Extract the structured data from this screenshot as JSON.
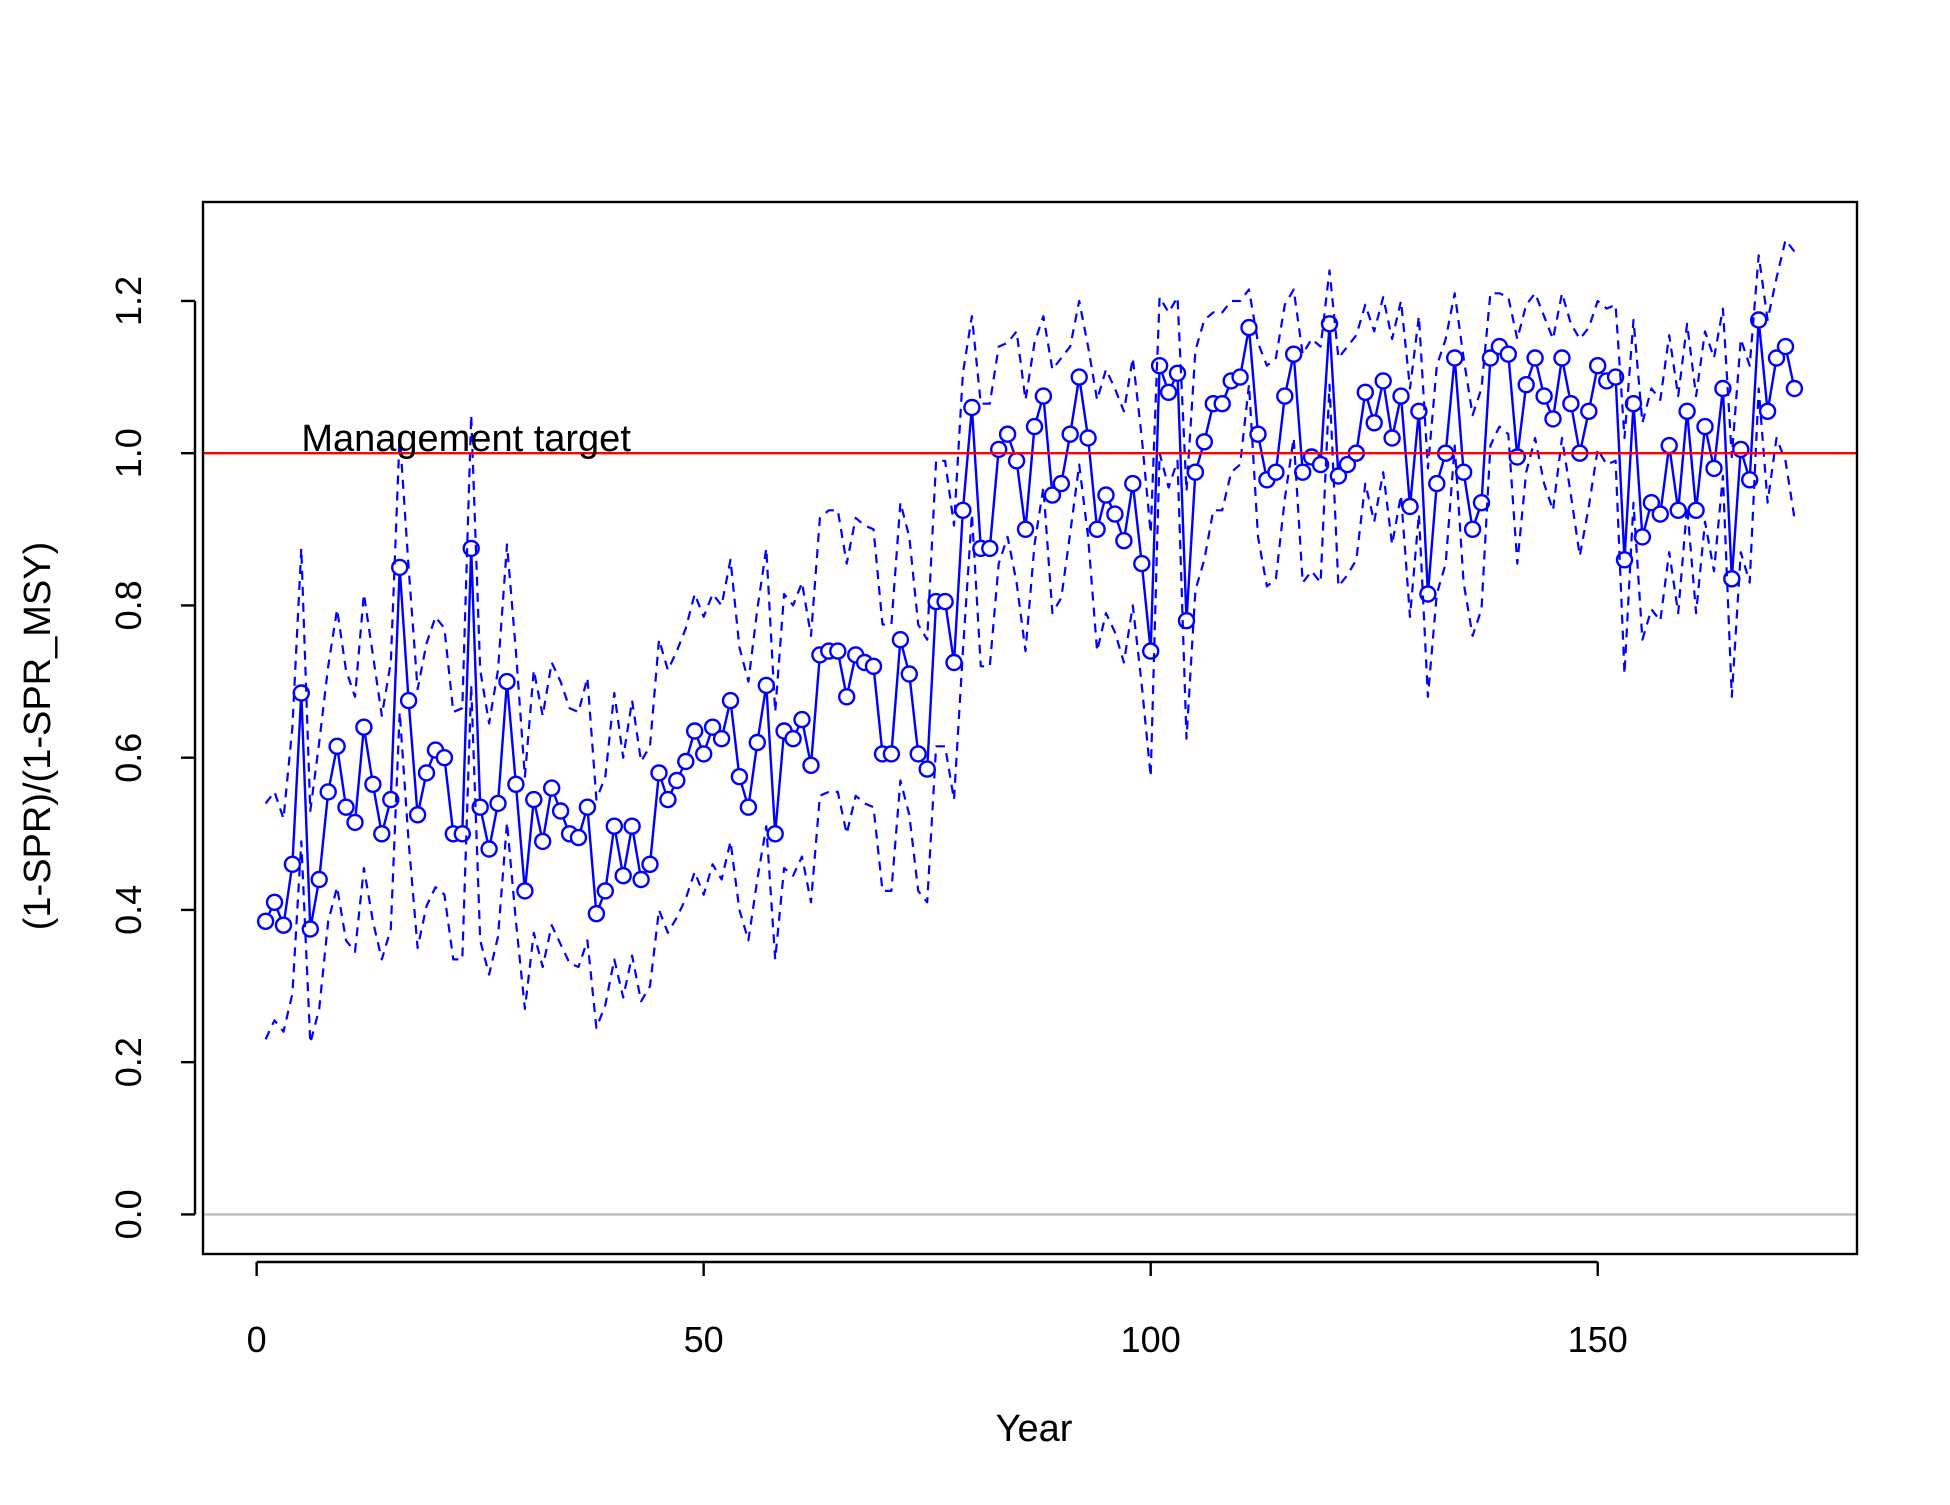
{
  "chart_data": {
    "type": "line",
    "title": "",
    "xlabel": "Year",
    "ylabel": "(1-SPR)/(1-SPR_MSY)",
    "xlim": [
      -6,
      179
    ],
    "ylim": [
      -0.052,
      1.33
    ],
    "x_ticks": [
      0,
      50,
      100,
      150
    ],
    "y_ticks": [
      0.0,
      0.2,
      0.4,
      0.6,
      0.8,
      1.0,
      1.2
    ],
    "x_tick_labels": [
      "0",
      "50",
      "100",
      "150"
    ],
    "y_tick_labels": [
      "0.0",
      "0.2",
      "0.4",
      "0.6",
      "0.8",
      "1.0",
      "1.2"
    ],
    "grid": false,
    "legend": "none",
    "colors": {
      "series": "#0000ff",
      "target_line": "#ff0000",
      "zero_line": "#bebebe",
      "axis": "#000000"
    },
    "reference_lines": [
      {
        "y": 1.0,
        "label": "Management target",
        "label_x": 5,
        "color": "#ff0000"
      },
      {
        "y": 0.0,
        "label": "",
        "color": "#bebebe"
      }
    ],
    "x": [
      1,
      2,
      3,
      4,
      5,
      6,
      7,
      8,
      9,
      10,
      11,
      12,
      13,
      14,
      15,
      16,
      17,
      18,
      19,
      20,
      21,
      22,
      23,
      24,
      25,
      26,
      27,
      28,
      29,
      30,
      31,
      32,
      33,
      34,
      35,
      36,
      37,
      38,
      39,
      40,
      41,
      42,
      43,
      44,
      45,
      46,
      47,
      48,
      49,
      50,
      51,
      52,
      53,
      54,
      55,
      56,
      57,
      58,
      59,
      60,
      61,
      62,
      63,
      64,
      65,
      66,
      67,
      68,
      69,
      70,
      71,
      72,
      73,
      74,
      75,
      76,
      77,
      78,
      79,
      80,
      81,
      82,
      83,
      84,
      85,
      86,
      87,
      88,
      89,
      90,
      91,
      92,
      93,
      94,
      95,
      96,
      97,
      98,
      99,
      100,
      101,
      102,
      103,
      104,
      105,
      106,
      107,
      108,
      109,
      110,
      111,
      112,
      113,
      114,
      115,
      116,
      117,
      118,
      119,
      120,
      121,
      122,
      123,
      124,
      125,
      126,
      127,
      128,
      129,
      130,
      131,
      132,
      133,
      134,
      135,
      136,
      137,
      138,
      139,
      140,
      141,
      142,
      143,
      144,
      145,
      146,
      147,
      148,
      149,
      150,
      151,
      152,
      153,
      154,
      155,
      156,
      157,
      158,
      159,
      160,
      161,
      162,
      163,
      164,
      165,
      166,
      167,
      168,
      169,
      170,
      171,
      172
    ],
    "series": [
      {
        "name": "",
        "style": "line-with-open-circles",
        "values": [
          0.385,
          0.41,
          0.38,
          0.46,
          0.685,
          0.375,
          0.44,
          0.555,
          0.615,
          0.535,
          0.515,
          0.64,
          0.565,
          0.5,
          0.545,
          0.85,
          0.675,
          0.525,
          0.58,
          0.61,
          0.6,
          0.5,
          0.5,
          0.875,
          0.535,
          0.48,
          0.54,
          0.7,
          0.565,
          0.425,
          0.545,
          0.49,
          0.56,
          0.53,
          0.5,
          0.495,
          0.535,
          0.395,
          0.425,
          0.51,
          0.445,
          0.51,
          0.44,
          0.46,
          0.58,
          0.545,
          0.57,
          0.595,
          0.635,
          0.605,
          0.64,
          0.625,
          0.675,
          0.575,
          0.535,
          0.62,
          0.695,
          0.5,
          0.635,
          0.625,
          0.65,
          0.59,
          0.735,
          0.74,
          0.74,
          0.68,
          0.735,
          0.725,
          0.72,
          0.605,
          0.605,
          0.755,
          0.71,
          0.605,
          0.585,
          0.805,
          0.805,
          0.725,
          0.925,
          1.06,
          0.875,
          0.875,
          1.005,
          1.025,
          0.99,
          0.9,
          1.035,
          1.075,
          0.945,
          0.96,
          1.025,
          1.1,
          1.02,
          0.9,
          0.945,
          0.92,
          0.885,
          0.96,
          0.855,
          0.74,
          1.115,
          1.08,
          1.105,
          0.78,
          0.975,
          1.015,
          1.065,
          1.065,
          1.095,
          1.1,
          1.165,
          1.025,
          0.965,
          0.975,
          1.075,
          1.13,
          0.975,
          0.995,
          0.985,
          1.17,
          0.97,
          0.985,
          1.0,
          1.08,
          1.04,
          1.095,
          1.02,
          1.075,
          0.93,
          1.055,
          0.815,
          0.96,
          1.0,
          1.125,
          0.975,
          0.9,
          0.935,
          1.125,
          1.14,
          1.13,
          0.995,
          1.09,
          1.125,
          1.075,
          1.045,
          1.125,
          1.065,
          1.0,
          1.055,
          1.115,
          1.095,
          1.1,
          0.86,
          1.065,
          0.89,
          0.935,
          0.92,
          1.01,
          0.925,
          1.055,
          0.925,
          1.035,
          0.98,
          1.085,
          0.835,
          1.005,
          0.965,
          1.175,
          1.055,
          1.125,
          1.14,
          1.085
        ]
      },
      {
        "name": "",
        "style": "dashed",
        "values": [
          0.54,
          0.555,
          0.52,
          0.64,
          0.875,
          0.53,
          0.62,
          0.72,
          0.795,
          0.715,
          0.68,
          0.815,
          0.735,
          0.655,
          0.725,
          1.025,
          0.85,
          0.69,
          0.75,
          0.785,
          0.77,
          0.66,
          0.665,
          1.05,
          0.715,
          0.645,
          0.715,
          0.88,
          0.74,
          0.575,
          0.715,
          0.655,
          0.725,
          0.7,
          0.665,
          0.66,
          0.705,
          0.545,
          0.575,
          0.685,
          0.6,
          0.675,
          0.595,
          0.615,
          0.755,
          0.715,
          0.74,
          0.77,
          0.815,
          0.785,
          0.815,
          0.8,
          0.86,
          0.745,
          0.7,
          0.795,
          0.875,
          0.66,
          0.815,
          0.8,
          0.83,
          0.76,
          0.915,
          0.925,
          0.925,
          0.855,
          0.915,
          0.905,
          0.9,
          0.775,
          0.775,
          0.935,
          0.89,
          0.775,
          0.755,
          0.99,
          0.99,
          0.905,
          1.105,
          1.18,
          1.065,
          1.065,
          1.14,
          1.145,
          1.16,
          1.07,
          1.145,
          1.18,
          1.11,
          1.125,
          1.14,
          1.2,
          1.14,
          1.07,
          1.11,
          1.085,
          1.055,
          1.125,
          1.02,
          0.895,
          1.205,
          1.185,
          1.205,
          0.95,
          1.135,
          1.175,
          1.185,
          1.185,
          1.2,
          1.2,
          1.215,
          1.145,
          1.115,
          1.125,
          1.195,
          1.215,
          1.13,
          1.15,
          1.14,
          1.24,
          1.125,
          1.14,
          1.155,
          1.195,
          1.16,
          1.205,
          1.15,
          1.2,
          1.085,
          1.18,
          0.98,
          1.115,
          1.15,
          1.21,
          1.125,
          1.05,
          1.085,
          1.21,
          1.21,
          1.205,
          1.15,
          1.195,
          1.21,
          1.18,
          1.15,
          1.21,
          1.17,
          1.15,
          1.165,
          1.2,
          1.19,
          1.195,
          1.02,
          1.175,
          1.04,
          1.085,
          1.07,
          1.155,
          1.075,
          1.17,
          1.075,
          1.16,
          1.125,
          1.19,
          0.995,
          1.15,
          1.115,
          1.26,
          1.175,
          1.23,
          1.28,
          1.265
        ]
      },
      {
        "name": "",
        "style": "dashed",
        "values": [
          0.23,
          0.255,
          0.24,
          0.29,
          0.49,
          0.225,
          0.27,
          0.385,
          0.43,
          0.36,
          0.345,
          0.455,
          0.385,
          0.335,
          0.375,
          0.66,
          0.49,
          0.35,
          0.405,
          0.43,
          0.42,
          0.335,
          0.335,
          0.695,
          0.36,
          0.315,
          0.365,
          0.515,
          0.385,
          0.27,
          0.37,
          0.325,
          0.38,
          0.355,
          0.33,
          0.325,
          0.36,
          0.245,
          0.275,
          0.335,
          0.285,
          0.34,
          0.28,
          0.3,
          0.4,
          0.37,
          0.39,
          0.415,
          0.45,
          0.42,
          0.46,
          0.44,
          0.49,
          0.4,
          0.36,
          0.44,
          0.51,
          0.335,
          0.455,
          0.445,
          0.47,
          0.41,
          0.55,
          0.555,
          0.555,
          0.5,
          0.55,
          0.54,
          0.535,
          0.425,
          0.425,
          0.57,
          0.525,
          0.425,
          0.41,
          0.615,
          0.615,
          0.545,
          0.74,
          0.92,
          0.72,
          0.72,
          0.855,
          0.89,
          0.83,
          0.74,
          0.88,
          0.955,
          0.79,
          0.81,
          0.895,
          0.985,
          0.89,
          0.74,
          0.79,
          0.765,
          0.725,
          0.8,
          0.695,
          0.575,
          1.0,
          0.955,
          0.99,
          0.625,
          0.82,
          0.86,
          0.925,
          0.925,
          0.975,
          0.985,
          1.09,
          0.89,
          0.825,
          0.835,
          0.94,
          1.02,
          0.83,
          0.845,
          0.83,
          1.09,
          0.825,
          0.84,
          0.86,
          0.96,
          0.91,
          0.975,
          0.88,
          0.945,
          0.785,
          0.92,
          0.68,
          0.815,
          0.855,
          1.01,
          0.83,
          0.76,
          0.795,
          1.01,
          1.035,
          1.025,
          0.855,
          0.975,
          1.02,
          0.96,
          0.925,
          1.02,
          0.945,
          0.865,
          0.93,
          1.005,
          0.985,
          0.99,
          0.71,
          0.935,
          0.755,
          0.795,
          0.78,
          0.87,
          0.79,
          0.93,
          0.79,
          0.91,
          0.845,
          0.97,
          0.68,
          0.87,
          0.83,
          1.085,
          0.935,
          1.02,
          0.99,
          0.915
        ]
      }
    ]
  }
}
